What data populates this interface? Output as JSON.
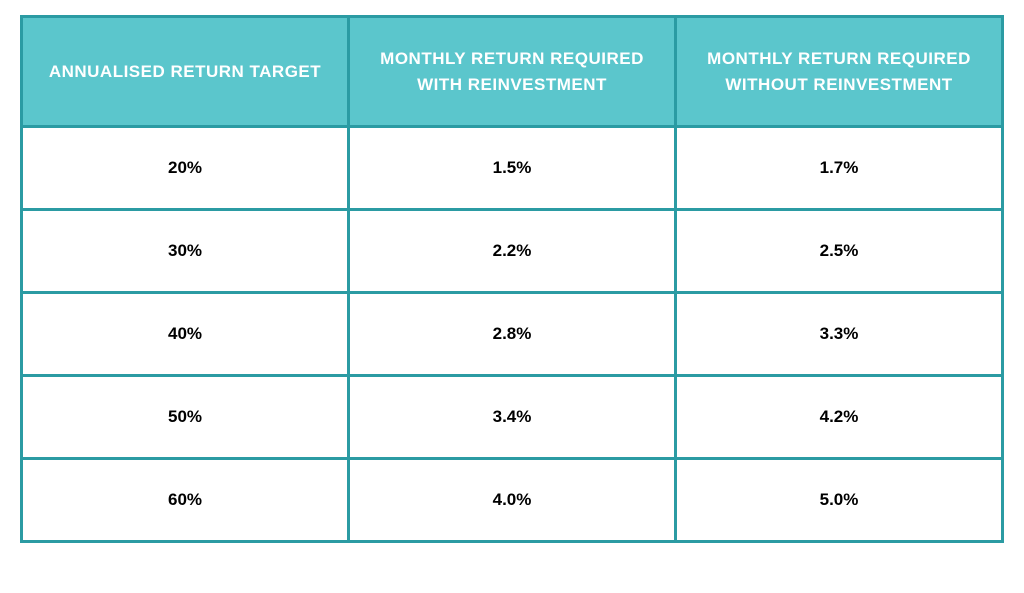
{
  "table": {
    "type": "table",
    "header_bg_color": "#5bc6cc",
    "header_text_color": "#ffffff",
    "cell_bg_color": "#ffffff",
    "cell_text_color": "#000000",
    "border_color": "#2b9ba3",
    "border_width": 3,
    "header_fontsize": 17,
    "cell_fontsize": 17,
    "font_weight": "bold",
    "columns": [
      "ANNUALISED RETURN TARGET",
      "MONTHLY RETURN REQUIRED WITH REINVESTMENT",
      "MONTHLY RETURN REQUIRED WITHOUT REINVESTMENT"
    ],
    "rows": [
      [
        "20%",
        "1.5%",
        "1.7%"
      ],
      [
        "30%",
        "2.2%",
        "2.5%"
      ],
      [
        "40%",
        "2.8%",
        "3.3%"
      ],
      [
        "50%",
        "3.4%",
        "4.2%"
      ],
      [
        "60%",
        "4.0%",
        "5.0%"
      ]
    ]
  }
}
